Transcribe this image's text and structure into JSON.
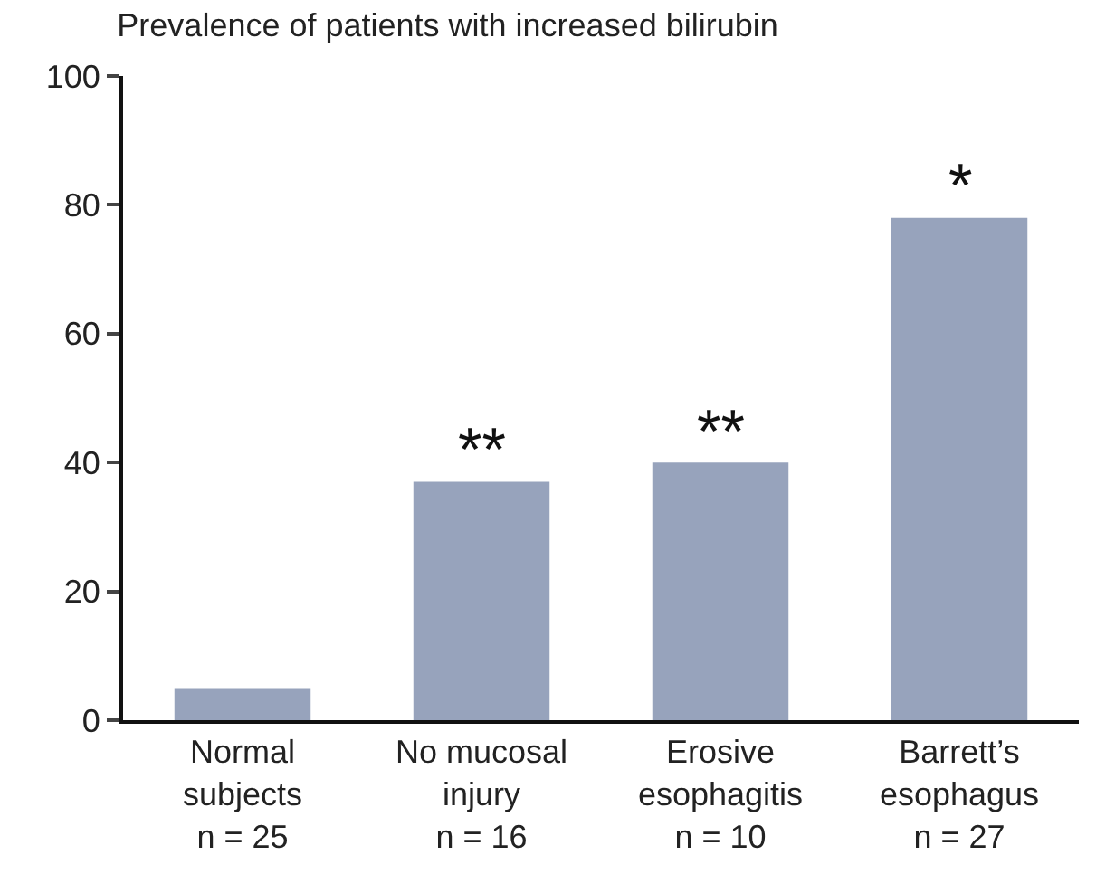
{
  "chart_data": {
    "type": "bar",
    "title": "Prevalence of patients with increased bilirubin",
    "categories": [
      "Normal\nsubjects\nn = 25",
      "No mucosal\ninjury\nn = 16",
      "Erosive\nesophagitis\nn = 10",
      "Barrett’s\nesophagus\nn = 27"
    ],
    "values": [
      5,
      37,
      40,
      78
    ],
    "color": "#97a3bc",
    "ylim": [
      0,
      100
    ],
    "yticks": [
      0,
      20,
      40,
      60,
      80,
      100
    ],
    "grid": false,
    "annotations": [
      {
        "text": "**",
        "x": "No mucosal\ninjury\nn = 16",
        "y": 37
      },
      {
        "text": "**",
        "x": "Erosive\nesophagitis\nn = 10",
        "y": 40
      },
      {
        "text": "*",
        "x": "Barrett’s\nesophagus\nn = 27",
        "y": 78
      }
    ]
  }
}
